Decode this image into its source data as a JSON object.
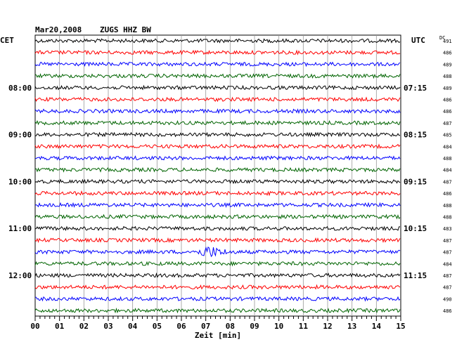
{
  "header": {
    "date": "Mar20,2008",
    "station": "ZUGS HHZ BW",
    "left_zone": "CET",
    "right_zone": "UTC",
    "dc_label": "DC"
  },
  "chart_data": {
    "type": "line",
    "title": "Mar20,2008   ZUGS HHZ BW",
    "xlabel": "Zeit [min]",
    "ylabel": "",
    "x_ticks": [
      "00",
      "01",
      "02",
      "03",
      "04",
      "05",
      "06",
      "07",
      "08",
      "09",
      "10",
      "11",
      "12",
      "13",
      "14",
      "15"
    ],
    "xlim": [
      0,
      15
    ],
    "trace_colors": [
      "#000000",
      "#ff0000",
      "#0000ff",
      "#006400"
    ],
    "cet_labels": [
      {
        "trace": 4,
        "text": "08:00"
      },
      {
        "trace": 8,
        "text": "09:00"
      },
      {
        "trace": 12,
        "text": "10:00"
      },
      {
        "trace": 16,
        "text": "11:00"
      },
      {
        "trace": 20,
        "text": "12:00"
      }
    ],
    "utc_labels": [
      {
        "trace": 4,
        "text": "07:15"
      },
      {
        "trace": 8,
        "text": "08:15"
      },
      {
        "trace": 12,
        "text": "09:15"
      },
      {
        "trace": 16,
        "text": "10:15"
      },
      {
        "trace": 20,
        "text": "11:15"
      }
    ],
    "dc_values": [
      "491",
      "486",
      "489",
      "488",
      "489",
      "486",
      "486",
      "487",
      "485",
      "484",
      "488",
      "484",
      "487",
      "486",
      "488",
      "488",
      "483",
      "487",
      "487",
      "484",
      "487",
      "487",
      "490",
      "486"
    ],
    "event": {
      "trace": 18,
      "start_min": 6.1,
      "peak_min": 7.1,
      "end_min": 8.1
    },
    "grid": true
  }
}
